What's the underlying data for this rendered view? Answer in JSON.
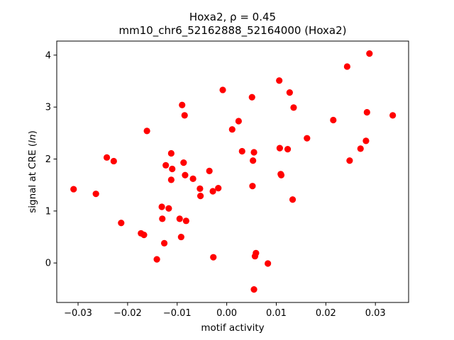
{
  "chart_data": {
    "type": "scatter",
    "title": "Hoxa2, ρ = 0.45",
    "subtitle": "mm10_chr6_52162888_52164000 (Hoxa2)",
    "xlabel": "motif activity",
    "ylabel": "signal at CRE (ln)",
    "ylabel_parts": {
      "prefix": "signal at CRE (",
      "italic": "ln",
      "suffix": ")"
    },
    "xlim": [
      -0.0343,
      0.0367
    ],
    "ylim": [
      -0.76,
      4.27
    ],
    "xticks": [
      -0.03,
      -0.02,
      -0.01,
      0.0,
      0.01,
      0.02,
      0.03
    ],
    "xtick_labels": [
      "−0.03",
      "−0.02",
      "−0.01",
      "0.00",
      "0.01",
      "0.02",
      "0.03"
    ],
    "yticks": [
      0,
      1,
      2,
      3,
      4
    ],
    "ytick_labels": [
      "0",
      "1",
      "2",
      "3",
      "4"
    ],
    "grid": false,
    "marker_color": "#ff0000",
    "points": [
      {
        "x": -0.0309,
        "y": 1.42
      },
      {
        "x": -0.0264,
        "y": 1.33
      },
      {
        "x": -0.0242,
        "y": 2.03
      },
      {
        "x": -0.0228,
        "y": 1.96
      },
      {
        "x": -0.0213,
        "y": 0.77
      },
      {
        "x": -0.0173,
        "y": 0.57
      },
      {
        "x": -0.0167,
        "y": 0.54
      },
      {
        "x": -0.0161,
        "y": 2.54
      },
      {
        "x": -0.0141,
        "y": 0.07
      },
      {
        "x": -0.0131,
        "y": 1.08
      },
      {
        "x": -0.013,
        "y": 0.85
      },
      {
        "x": -0.0126,
        "y": 0.38
      },
      {
        "x": -0.0123,
        "y": 1.88
      },
      {
        "x": -0.0117,
        "y": 1.05
      },
      {
        "x": -0.0112,
        "y": 2.11
      },
      {
        "x": -0.0112,
        "y": 1.6
      },
      {
        "x": -0.011,
        "y": 1.81
      },
      {
        "x": -0.0095,
        "y": 0.85
      },
      {
        "x": -0.0092,
        "y": 0.5
      },
      {
        "x": -0.009,
        "y": 3.04
      },
      {
        "x": -0.0087,
        "y": 1.93
      },
      {
        "x": -0.0085,
        "y": 2.84
      },
      {
        "x": -0.0084,
        "y": 1.69
      },
      {
        "x": -0.0082,
        "y": 0.81
      },
      {
        "x": -0.0068,
        "y": 1.62
      },
      {
        "x": -0.0054,
        "y": 1.43
      },
      {
        "x": -0.0053,
        "y": 1.29
      },
      {
        "x": -0.0035,
        "y": 1.77
      },
      {
        "x": -0.0028,
        "y": 1.38
      },
      {
        "x": -0.0027,
        "y": 0.11
      },
      {
        "x": -0.0017,
        "y": 1.44
      },
      {
        "x": -0.0008,
        "y": 3.33
      },
      {
        "x": 0.0011,
        "y": 2.57
      },
      {
        "x": 0.0024,
        "y": 2.73
      },
      {
        "x": 0.0031,
        "y": 2.15
      },
      {
        "x": 0.0051,
        "y": 3.19
      },
      {
        "x": 0.0052,
        "y": 1.48
      },
      {
        "x": 0.0053,
        "y": 1.97
      },
      {
        "x": 0.0055,
        "y": 2.13
      },
      {
        "x": 0.0055,
        "y": -0.51
      },
      {
        "x": 0.0057,
        "y": 0.13
      },
      {
        "x": 0.0059,
        "y": 0.19
      },
      {
        "x": 0.0083,
        "y": -0.01
      },
      {
        "x": 0.0106,
        "y": 3.51
      },
      {
        "x": 0.0107,
        "y": 2.21
      },
      {
        "x": 0.0109,
        "y": 1.71
      },
      {
        "x": 0.011,
        "y": 1.69
      },
      {
        "x": 0.0123,
        "y": 2.19
      },
      {
        "x": 0.0127,
        "y": 3.28
      },
      {
        "x": 0.0133,
        "y": 1.22
      },
      {
        "x": 0.0135,
        "y": 2.99
      },
      {
        "x": 0.0162,
        "y": 2.4
      },
      {
        "x": 0.0215,
        "y": 2.75
      },
      {
        "x": 0.0243,
        "y": 3.78
      },
      {
        "x": 0.0248,
        "y": 1.97
      },
      {
        "x": 0.027,
        "y": 2.2
      },
      {
        "x": 0.0281,
        "y": 2.35
      },
      {
        "x": 0.0283,
        "y": 2.9
      },
      {
        "x": 0.0288,
        "y": 4.03
      },
      {
        "x": 0.0335,
        "y": 2.84
      }
    ]
  }
}
